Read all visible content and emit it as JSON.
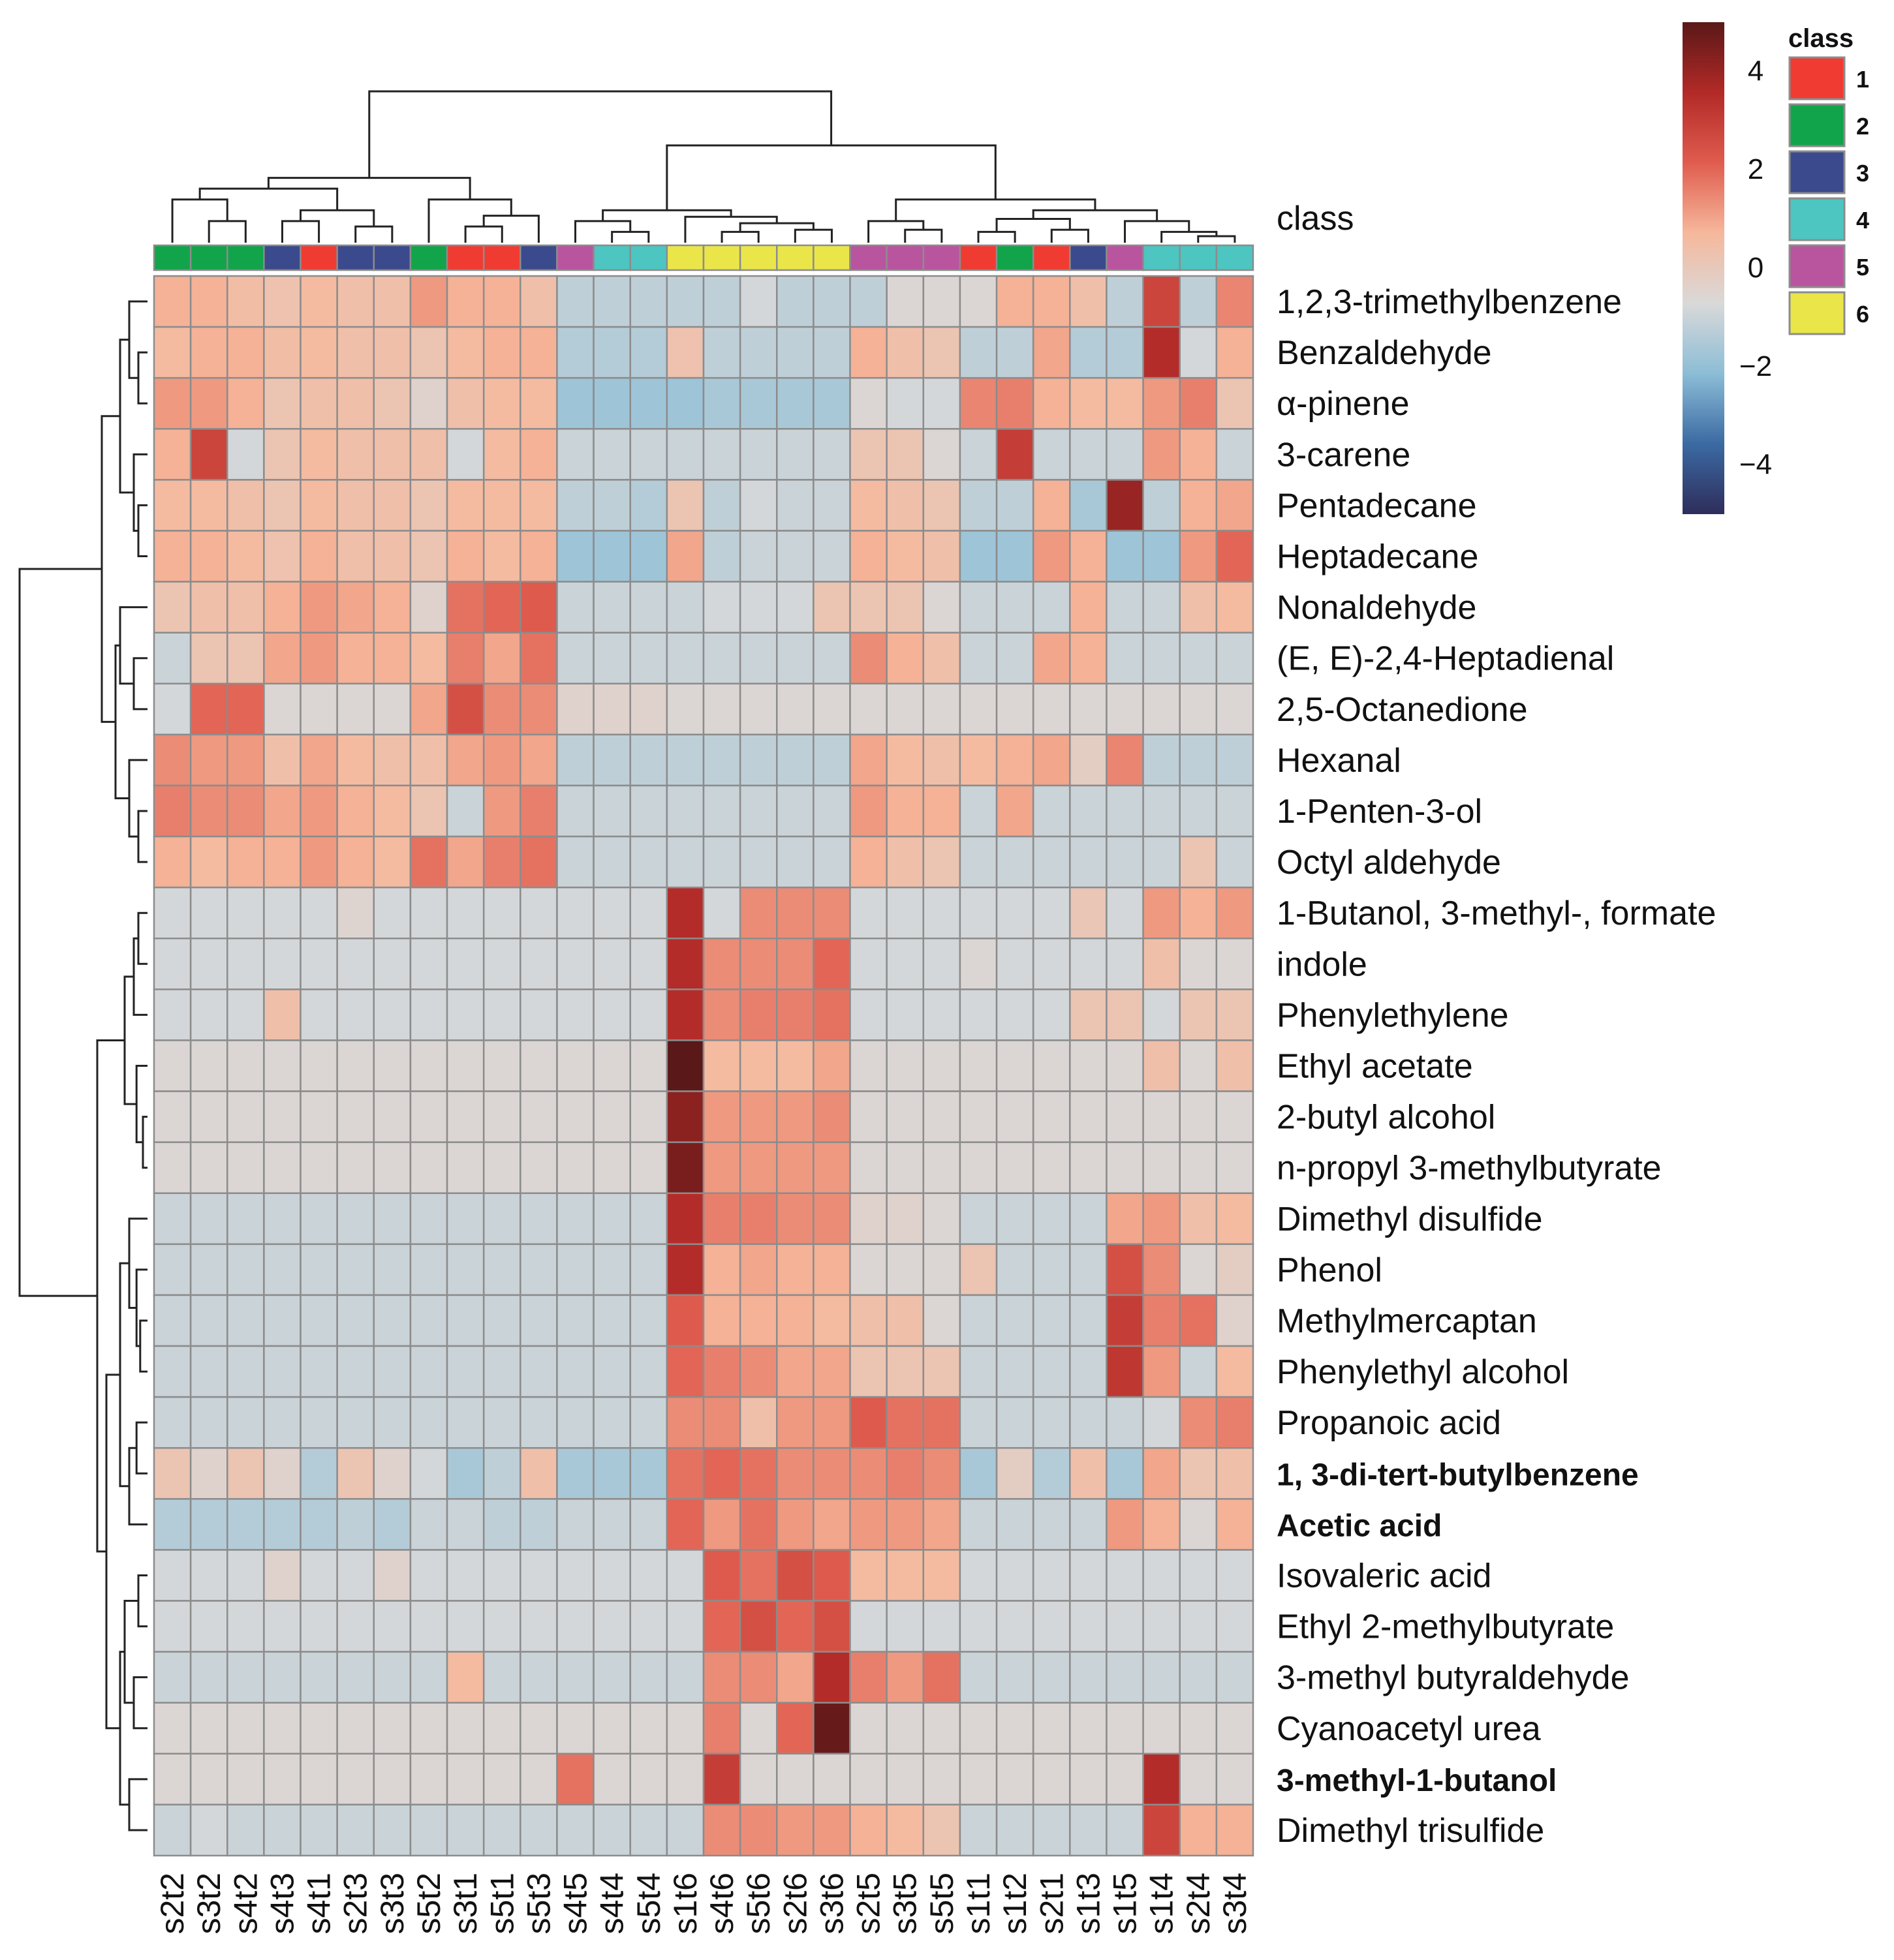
{
  "chart_data": {
    "type": "heatmap",
    "title": "",
    "class_row_label": "class",
    "columns": [
      "s2t2",
      "s3t2",
      "s4t2",
      "s4t3",
      "s4t1",
      "s2t3",
      "s3t3",
      "s5t2",
      "s3t1",
      "s5t1",
      "s5t3",
      "s4t5",
      "s4t4",
      "s5t4",
      "s1t6",
      "s4t6",
      "s5t6",
      "s2t6",
      "s3t6",
      "s2t5",
      "s3t5",
      "s5t5",
      "s1t1",
      "s1t2",
      "s2t1",
      "s1t3",
      "s1t5",
      "s1t4",
      "s2t4",
      "s3t4"
    ],
    "column_classes": [
      2,
      2,
      2,
      3,
      1,
      3,
      3,
      2,
      1,
      1,
      3,
      5,
      4,
      4,
      6,
      6,
      6,
      6,
      6,
      5,
      5,
      5,
      1,
      2,
      1,
      3,
      5,
      4,
      4,
      4
    ],
    "rows": [
      "1,2,3-trimethylbenzene",
      "Benzaldehyde",
      "α-pinene",
      "3-carene",
      "Pentadecane",
      "Heptadecane",
      "Nonaldehyde",
      "(E, E)-2,4-Heptadienal",
      "2,5-Octanedione",
      "Hexanal",
      "1-Penten-3-ol",
      "Octyl aldehyde",
      "1-Butanol, 3-methyl-, formate",
      "indole",
      "Phenylethylene",
      "Ethyl acetate",
      "2-butyl alcohol",
      "n-propyl 3-methylbutyrate",
      "Dimethyl disulfide",
      "Phenol",
      "Methylmercaptan",
      "Phenylethyl alcohol",
      "Propanoic acid",
      "1, 3-di-tert-butylbenzene",
      "Acetic acid",
      "Isovaleric acid",
      "Ethyl 2-methylbutyrate",
      "3-methyl butyraldehyde",
      "Cyanoacetyl urea",
      "3-methyl-1-butanol",
      "Dimethyl trisulfide"
    ],
    "bold_rows": [
      "1, 3-di-tert-butylbenzene",
      "Acetic acid",
      "3-methyl-1-butanol"
    ],
    "values": [
      [
        0.8,
        0.8,
        0.5,
        0.3,
        0.6,
        0.4,
        0.4,
        1.2,
        0.8,
        0.8,
        0.4,
        -1.2,
        -1.2,
        -1.2,
        -1.2,
        -1.2,
        -0.8,
        -1.2,
        -1.2,
        -1.2,
        -0.6,
        -0.6,
        -0.6,
        0.8,
        0.8,
        0.4,
        -1.2,
        2.8,
        -1.2,
        1.5
      ],
      [
        0.6,
        0.8,
        0.8,
        0.5,
        0.6,
        0.4,
        0.4,
        0.2,
        0.6,
        0.8,
        0.8,
        -1.4,
        -1.4,
        -1.4,
        0.3,
        -1.2,
        -1.2,
        -1.2,
        -1.2,
        0.8,
        0.4,
        0.2,
        -1.2,
        -1.2,
        1.0,
        -1.4,
        -1.4,
        3.5,
        -0.8,
        0.8
      ],
      [
        1.2,
        1.2,
        0.8,
        0.2,
        0.4,
        0.4,
        0.2,
        -0.4,
        0.4,
        0.6,
        0.6,
        -1.8,
        -1.8,
        -1.8,
        -1.8,
        -1.6,
        -1.6,
        -1.6,
        -1.6,
        -0.6,
        -0.8,
        -0.8,
        1.5,
        1.6,
        0.8,
        0.6,
        0.6,
        1.2,
        1.6,
        0.2
      ],
      [
        0.8,
        2.8,
        -0.8,
        0.2,
        0.6,
        0.4,
        0.4,
        0.4,
        -0.8,
        0.6,
        0.8,
        -1.0,
        -1.0,
        -1.0,
        -1.0,
        -1.0,
        -1.0,
        -1.0,
        -1.0,
        0.2,
        0.2,
        -0.6,
        -1.0,
        3.0,
        -1.0,
        -1.0,
        -1.0,
        1.2,
        0.8,
        -1.0
      ],
      [
        0.6,
        0.6,
        0.4,
        0.2,
        0.6,
        0.4,
        0.4,
        0.2,
        0.6,
        0.6,
        0.6,
        -1.2,
        -1.2,
        -1.4,
        0.2,
        -1.2,
        -0.8,
        -1.0,
        -1.0,
        0.6,
        0.4,
        0.2,
        -1.2,
        -1.2,
        0.8,
        -1.6,
        4.0,
        -1.2,
        0.8,
        1.0
      ],
      [
        0.8,
        0.8,
        0.6,
        0.3,
        0.8,
        0.4,
        0.4,
        0.2,
        0.8,
        0.6,
        0.8,
        -1.8,
        -1.8,
        -1.8,
        1.0,
        -1.2,
        -1.0,
        -1.0,
        -1.0,
        0.8,
        0.6,
        0.4,
        -1.8,
        -1.8,
        1.2,
        0.8,
        -1.8,
        -1.8,
        1.2,
        2.0
      ],
      [
        0.2,
        0.4,
        0.4,
        0.8,
        1.2,
        1.0,
        0.8,
        -0.4,
        1.8,
        2.0,
        2.2,
        -1.0,
        -1.0,
        -1.0,
        -1.0,
        -0.8,
        -0.8,
        -0.8,
        0.2,
        0.2,
        0.2,
        -0.6,
        -1.0,
        -1.0,
        -1.0,
        0.8,
        -1.0,
        -1.0,
        0.4,
        0.6
      ],
      [
        -1.0,
        0.2,
        0.2,
        1.0,
        1.2,
        0.8,
        0.8,
        0.6,
        1.6,
        1.0,
        1.8,
        -1.0,
        -1.0,
        -1.0,
        -1.0,
        -1.0,
        -1.0,
        -1.0,
        -1.0,
        1.4,
        0.8,
        0.4,
        -1.0,
        -1.0,
        1.0,
        0.8,
        -1.0,
        -1.0,
        -1.0,
        -1.0
      ],
      [
        -0.8,
        2.0,
        2.0,
        -0.6,
        -0.6,
        -0.6,
        -0.6,
        1.0,
        2.5,
        1.4,
        1.4,
        -0.4,
        -0.4,
        -0.4,
        -0.6,
        -0.6,
        -0.6,
        -0.6,
        -0.6,
        -0.6,
        -0.6,
        -0.6,
        -0.6,
        -0.6,
        -0.6,
        -0.6,
        -0.6,
        -0.6,
        -0.6,
        -0.6
      ],
      [
        1.4,
        1.2,
        1.2,
        0.4,
        1.0,
        0.6,
        0.4,
        0.4,
        1.0,
        1.2,
        1.0,
        -1.2,
        -1.2,
        -1.2,
        -1.2,
        -1.2,
        -1.2,
        -1.2,
        -1.2,
        1.0,
        0.6,
        0.4,
        0.6,
        0.8,
        1.0,
        -0.2,
        1.5,
        -1.2,
        -1.2,
        -1.2
      ],
      [
        1.6,
        1.4,
        1.4,
        1.0,
        1.2,
        0.8,
        0.6,
        0.2,
        -1.0,
        1.2,
        1.6,
        -1.0,
        -1.0,
        -1.0,
        -1.0,
        -1.0,
        -1.0,
        -1.0,
        -1.0,
        1.2,
        0.8,
        0.8,
        -1.0,
        1.0,
        -1.0,
        -1.0,
        -1.0,
        -1.0,
        -1.0,
        -1.0
      ],
      [
        0.8,
        0.6,
        0.8,
        0.8,
        1.2,
        0.8,
        0.6,
        1.8,
        1.0,
        1.6,
        1.8,
        -1.0,
        -1.0,
        -1.0,
        -1.0,
        -1.0,
        -1.0,
        -1.0,
        -1.0,
        0.8,
        0.4,
        0.2,
        -1.0,
        -1.0,
        -1.0,
        -1.0,
        -1.0,
        -1.0,
        0.2,
        -1.0
      ],
      [
        -0.8,
        -0.8,
        -0.8,
        -0.8,
        -0.8,
        -0.5,
        -0.8,
        -0.8,
        -0.8,
        -0.8,
        -0.8,
        -0.8,
        -0.8,
        -0.8,
        3.5,
        -0.8,
        1.4,
        1.4,
        1.4,
        -0.8,
        -0.8,
        -0.8,
        -0.8,
        -0.8,
        -0.8,
        0.1,
        -0.8,
        1.2,
        0.8,
        1.2
      ],
      [
        -0.8,
        -0.8,
        -0.8,
        -0.8,
        -0.8,
        -0.8,
        -0.8,
        -0.8,
        -0.8,
        -0.8,
        -0.8,
        -0.8,
        -0.8,
        -0.8,
        3.5,
        1.4,
        1.4,
        1.4,
        2.0,
        -0.8,
        -0.8,
        -0.8,
        -0.6,
        -0.8,
        -0.8,
        -0.8,
        -0.8,
        0.4,
        -0.6,
        -0.6
      ],
      [
        -0.8,
        -0.8,
        -0.8,
        0.4,
        -0.8,
        -0.8,
        -0.8,
        -0.8,
        -0.8,
        -0.8,
        -0.8,
        -0.8,
        -0.8,
        -0.8,
        3.5,
        1.4,
        1.6,
        1.6,
        1.8,
        -0.8,
        -0.8,
        -0.8,
        -0.8,
        -0.8,
        -0.8,
        0.2,
        0.2,
        -0.8,
        0.2,
        0.2
      ],
      [
        -0.6,
        -0.6,
        -0.6,
        -0.6,
        -0.6,
        -0.6,
        -0.6,
        -0.6,
        -0.6,
        -0.6,
        -0.6,
        -0.6,
        -0.6,
        -0.6,
        5.0,
        0.6,
        0.6,
        0.6,
        1.0,
        -0.6,
        -0.6,
        -0.6,
        -0.6,
        -0.6,
        -0.6,
        -0.6,
        -0.6,
        0.4,
        -0.6,
        0.4
      ],
      [
        -0.6,
        -0.6,
        -0.6,
        -0.6,
        -0.6,
        -0.6,
        -0.6,
        -0.6,
        -0.6,
        -0.6,
        -0.6,
        -0.6,
        -0.6,
        -0.6,
        4.2,
        1.2,
        1.2,
        1.2,
        1.4,
        -0.6,
        -0.6,
        -0.6,
        -0.6,
        -0.6,
        -0.6,
        -0.6,
        -0.6,
        -0.6,
        -0.6,
        -0.6
      ],
      [
        -0.6,
        -0.6,
        -0.6,
        -0.6,
        -0.6,
        -0.6,
        -0.6,
        -0.6,
        -0.6,
        -0.6,
        -0.6,
        -0.6,
        -0.6,
        -0.6,
        4.5,
        1.2,
        1.2,
        1.2,
        1.2,
        -0.6,
        -0.6,
        -0.6,
        -0.6,
        -0.6,
        -0.6,
        -0.6,
        -0.6,
        -0.6,
        -0.6,
        -0.6
      ],
      [
        -1.0,
        -1.0,
        -1.0,
        -1.0,
        -1.0,
        -1.0,
        -1.0,
        -1.0,
        -1.0,
        -1.0,
        -1.0,
        -1.0,
        -1.0,
        -1.0,
        3.5,
        1.6,
        1.6,
        1.4,
        1.4,
        -0.4,
        -0.4,
        -0.6,
        -1.0,
        -1.0,
        -1.0,
        -1.0,
        1.0,
        1.2,
        0.4,
        0.6
      ],
      [
        -1.0,
        -1.0,
        -1.0,
        -1.0,
        -1.0,
        -1.0,
        -1.0,
        -1.0,
        -1.0,
        -1.0,
        -1.0,
        -1.0,
        -1.0,
        -1.0,
        3.5,
        0.8,
        1.0,
        0.8,
        0.8,
        -0.6,
        -0.6,
        -0.6,
        0.2,
        -1.0,
        -1.0,
        -1.0,
        2.5,
        1.4,
        -0.6,
        -0.2
      ],
      [
        -1.0,
        -1.0,
        -1.0,
        -1.0,
        -1.0,
        -1.0,
        -1.0,
        -1.0,
        -1.0,
        -1.0,
        -1.0,
        -1.0,
        -1.0,
        -1.0,
        2.2,
        0.8,
        0.8,
        0.8,
        0.6,
        0.4,
        0.4,
        -0.6,
        -1.0,
        -1.0,
        -1.0,
        -1.0,
        3.0,
        1.6,
        1.8,
        -0.4
      ],
      [
        -1.0,
        -1.0,
        -1.0,
        -1.0,
        -1.0,
        -1.0,
        -1.0,
        -1.0,
        -1.0,
        -1.0,
        -1.0,
        -1.0,
        -1.0,
        -1.0,
        2.0,
        1.6,
        1.4,
        1.0,
        1.0,
        0.2,
        0.2,
        0.2,
        -1.0,
        -1.0,
        -1.0,
        -1.0,
        3.2,
        1.2,
        -1.0,
        0.6
      ],
      [
        -1.0,
        -1.0,
        -1.0,
        -1.0,
        -1.0,
        -1.0,
        -1.0,
        -1.0,
        -1.0,
        -1.0,
        -1.0,
        -1.0,
        -1.0,
        -1.0,
        1.4,
        1.4,
        0.4,
        1.2,
        1.2,
        2.2,
        1.8,
        1.8,
        -1.0,
        -1.0,
        -1.0,
        -1.0,
        -1.0,
        -0.8,
        1.4,
        1.6
      ],
      [
        0.2,
        -0.4,
        0.2,
        -0.4,
        -1.4,
        0.2,
        -0.4,
        -0.8,
        -1.6,
        -1.2,
        0.4,
        -1.6,
        -1.6,
        -1.6,
        1.8,
        2.0,
        1.8,
        1.4,
        1.4,
        1.4,
        1.6,
        1.4,
        -1.6,
        -0.2,
        -1.4,
        0.4,
        -1.6,
        1.0,
        0.2,
        0.4
      ],
      [
        -1.4,
        -1.4,
        -1.4,
        -1.4,
        -1.4,
        -1.2,
        -1.4,
        -1.0,
        -1.0,
        -1.2,
        -1.2,
        -1.0,
        -1.0,
        -1.0,
        2.0,
        1.2,
        1.8,
        1.2,
        1.0,
        1.2,
        1.2,
        1.0,
        -1.0,
        -1.0,
        -1.0,
        -1.0,
        1.2,
        0.8,
        -0.6,
        0.8
      ],
      [
        -0.8,
        -0.8,
        -0.8,
        -0.4,
        -0.8,
        -0.8,
        -0.4,
        -0.8,
        -0.8,
        -0.8,
        -0.8,
        -0.8,
        -0.8,
        -0.8,
        -0.8,
        2.2,
        1.8,
        2.5,
        2.2,
        0.6,
        0.6,
        0.6,
        -0.8,
        -0.8,
        -0.8,
        -0.8,
        -0.8,
        -0.8,
        -0.8,
        -0.8
      ],
      [
        -0.8,
        -0.8,
        -0.8,
        -0.8,
        -0.8,
        -0.8,
        -0.8,
        -0.8,
        -0.8,
        -0.8,
        -0.8,
        -0.8,
        -0.8,
        -0.8,
        -0.8,
        2.0,
        2.5,
        2.0,
        2.5,
        -0.8,
        -0.8,
        -0.8,
        -0.8,
        -0.8,
        -0.8,
        -0.8,
        -0.8,
        -0.8,
        -0.8,
        -0.8
      ],
      [
        -1.0,
        -1.0,
        -1.0,
        -1.0,
        -1.0,
        -1.0,
        -1.0,
        -1.0,
        0.6,
        -1.0,
        -1.0,
        -1.0,
        -1.0,
        -1.0,
        -1.0,
        1.4,
        1.4,
        1.0,
        3.5,
        1.6,
        1.2,
        1.8,
        -1.0,
        -1.0,
        -1.0,
        -1.0,
        -1.0,
        -1.0,
        -1.0,
        -1.0
      ],
      [
        -0.6,
        -0.6,
        -0.6,
        -0.6,
        -0.6,
        -0.6,
        -0.6,
        -0.6,
        -0.6,
        -0.6,
        -0.6,
        -0.6,
        -0.6,
        -0.6,
        -0.6,
        1.6,
        -0.6,
        2.0,
        4.8,
        -0.6,
        -0.6,
        -0.6,
        -0.6,
        -0.6,
        -0.6,
        -0.6,
        -0.6,
        -0.6,
        -0.6,
        -0.6
      ],
      [
        -0.6,
        -0.6,
        -0.6,
        -0.6,
        -0.6,
        -0.6,
        -0.6,
        -0.6,
        -0.6,
        -0.6,
        -0.6,
        1.8,
        -0.6,
        -0.6,
        -0.6,
        3.0,
        -0.6,
        -0.6,
        -0.6,
        -0.6,
        -0.6,
        -0.6,
        -0.6,
        -0.6,
        -0.6,
        -0.6,
        -0.6,
        3.5,
        -0.6,
        -0.6
      ],
      [
        -1.0,
        -0.8,
        -1.0,
        -1.0,
        -1.0,
        -1.0,
        -1.0,
        -1.0,
        -1.0,
        -1.0,
        -1.0,
        -1.0,
        -1.0,
        -1.0,
        -1.0,
        1.4,
        1.4,
        1.2,
        1.2,
        0.8,
        0.6,
        0.2,
        -1.0,
        -1.0,
        -1.0,
        -1.0,
        -1.0,
        2.8,
        0.8,
        0.8
      ]
    ],
    "color_scale": {
      "min": -5,
      "max": 5,
      "ticks": [
        -4,
        -2,
        0,
        2,
        4
      ],
      "tick_labels": [
        "−4",
        "−2",
        "0",
        "2",
        "4"
      ],
      "stops": [
        "#2e2d5a",
        "#3b6aa3",
        "#8cbdd6",
        "#d9d9d9",
        "#f6b89c",
        "#e05c4e",
        "#b22a27",
        "#5a1818"
      ]
    },
    "legend": {
      "title": "class",
      "entries": [
        {
          "label": "1",
          "color": "#f03b32"
        },
        {
          "label": "2",
          "color": "#12a44a"
        },
        {
          "label": "3",
          "color": "#3a4a8c"
        },
        {
          "label": "4",
          "color": "#4dc5c1"
        },
        {
          "label": "5",
          "color": "#b9559e"
        },
        {
          "label": "6",
          "color": "#eae64a"
        }
      ]
    }
  }
}
